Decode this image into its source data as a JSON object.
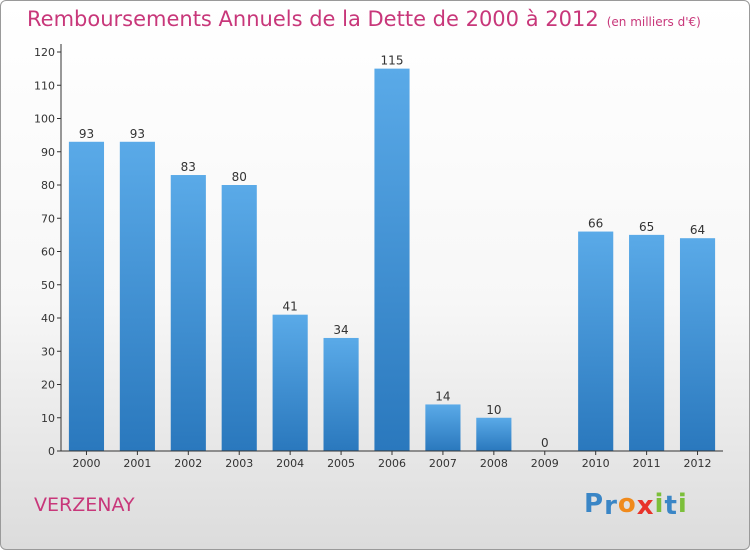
{
  "header": {
    "title": "Remboursements Annuels de la Dette de 2000 à 2012",
    "unit": "(en milliers d'€)"
  },
  "footer": {
    "commune": "VERZENAY",
    "brand": "Proxiti"
  },
  "colors": {
    "title": "#c8377a",
    "bar_light": "#5aaae8",
    "bar_dark": "#2a78bd",
    "brand_letters": [
      "#3a86c6",
      "#3a86c6",
      "#f08a1c",
      "#e8332a",
      "#7cbf3a",
      "#3a86c6",
      "#7cbf3a"
    ]
  },
  "chart_data": {
    "type": "bar",
    "categories": [
      "2000",
      "2001",
      "2002",
      "2003",
      "2004",
      "2005",
      "2006",
      "2007",
      "2008",
      "2009",
      "2010",
      "2011",
      "2012"
    ],
    "values": [
      93,
      93,
      83,
      80,
      41,
      34,
      115,
      14,
      10,
      0,
      66,
      65,
      64
    ],
    "data_labels": [
      "93",
      "93",
      "83",
      "80",
      "41",
      "34",
      "115",
      "14",
      "10",
      "0",
      "66",
      "65",
      "64"
    ],
    "title": "Remboursements Annuels de la Dette de 2000 à 2012",
    "xlabel": "",
    "ylabel": "",
    "ylim": [
      0,
      120
    ],
    "yticks": [
      "0",
      "10",
      "20",
      "30",
      "40",
      "50",
      "60",
      "70",
      "80",
      "90",
      "100",
      "110",
      "120"
    ],
    "grid": false,
    "legend": "none"
  }
}
